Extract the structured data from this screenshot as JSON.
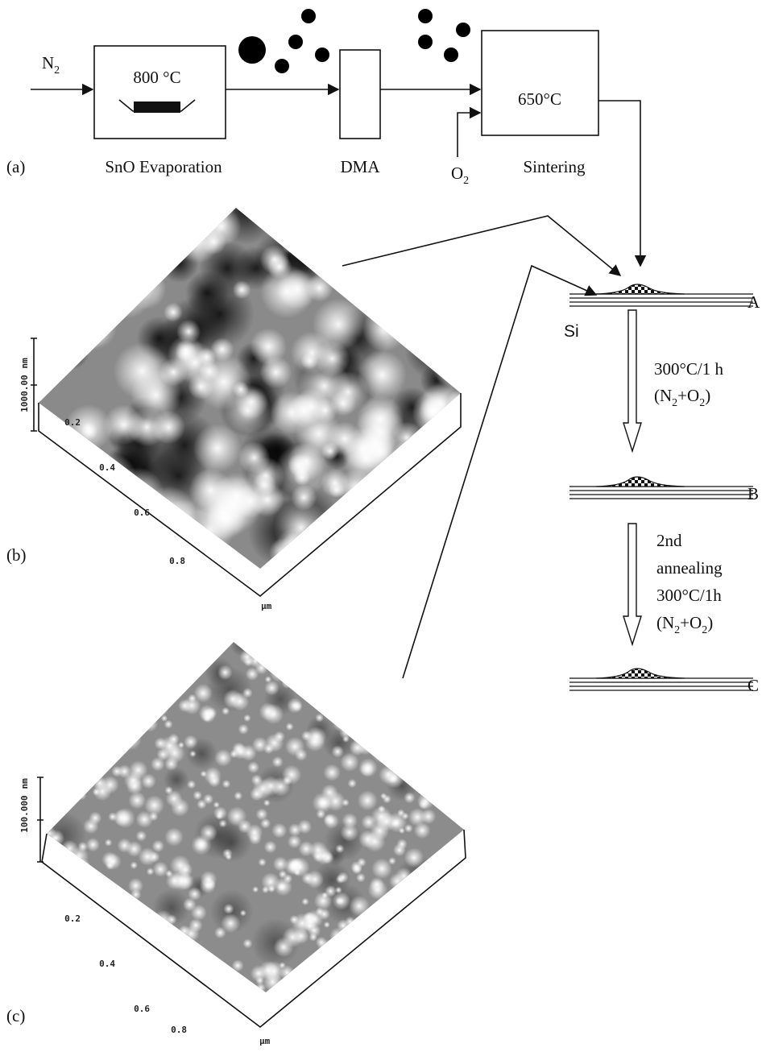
{
  "panel_a": {
    "label": "(a)",
    "inlet_gas": [
      "N",
      "2"
    ],
    "furnace_temp": "800 °C",
    "furnace_name": "SnO Evaporation",
    "dma": "DMA",
    "oxygen": [
      "O",
      "2"
    ],
    "sinter_temp": "650°C",
    "sinter_name": "Sintering"
  },
  "panel_b": {
    "label": "(b)",
    "z_scale": "1000.00",
    "z_unit": "nm",
    "x_ticks": [
      "0.2",
      "0.4",
      "0.6",
      "0.8"
    ],
    "x_unit": "µm"
  },
  "panel_c": {
    "label": "(c)",
    "z_scale": "100.000",
    "z_unit": "nm",
    "x_ticks": [
      "0.2",
      "0.4",
      "0.6",
      "0.8"
    ],
    "x_unit": "µm"
  },
  "process": {
    "substrate": "Si",
    "stages": [
      "A",
      "B",
      "C"
    ],
    "step1": {
      "condition": "300°C/1 h",
      "gas": [
        "(N",
        "2",
        "+O",
        "2",
        ")"
      ]
    },
    "step2": {
      "lines": [
        "2nd",
        "annealing",
        "300°C/1h"
      ],
      "gas": [
        "(N",
        "2",
        "+O",
        "2",
        ")"
      ]
    }
  }
}
